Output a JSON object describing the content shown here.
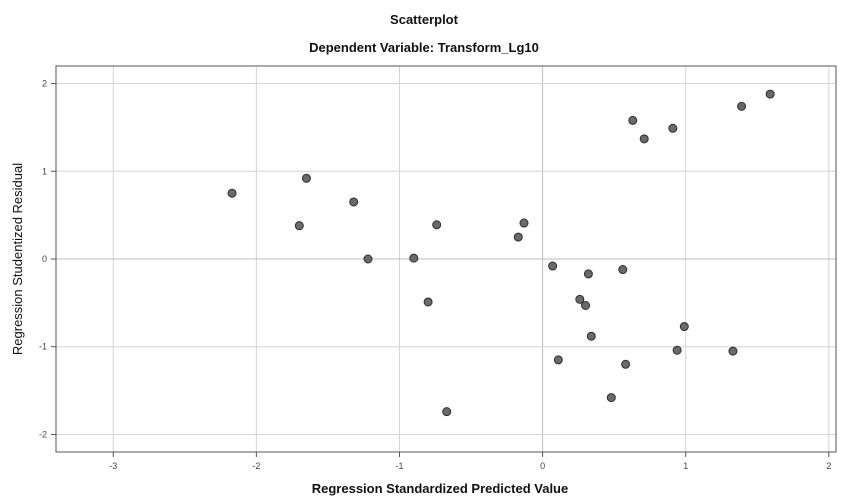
{
  "chart_data": {
    "type": "scatter",
    "title": "Scatterplot",
    "subtitle": "Dependent Variable: Transform_Lg10",
    "xlabel": "Regression Standardized Predicted Value",
    "ylabel": "Regression Studentized Residual",
    "xlim": [
      -3.4,
      2.05
    ],
    "ylim": [
      -2.2,
      2.2
    ],
    "x_ticks": [
      -3,
      -2,
      -1,
      0,
      1,
      2
    ],
    "x_tick_labels": [
      "-3",
      "-2",
      "-1",
      "0",
      "1",
      "2"
    ],
    "y_ticks": [
      -2,
      -1,
      0,
      1,
      2
    ],
    "y_tick_labels": [
      "-2",
      "-1",
      "0",
      "1",
      "2"
    ],
    "grid": true,
    "colors": {
      "point_fill": "#6a6a6a",
      "point_stroke": "#2e2e2e",
      "grid": "#d4d4d4",
      "zero_line": "#bdbdbd",
      "axis": "#555555",
      "text": "#111111"
    },
    "points": [
      {
        "x": -2.17,
        "y": 0.75
      },
      {
        "x": -1.7,
        "y": 0.38
      },
      {
        "x": -1.65,
        "y": 0.92
      },
      {
        "x": -1.32,
        "y": 0.65
      },
      {
        "x": -1.22,
        "y": 0.0
      },
      {
        "x": -0.9,
        "y": 0.01
      },
      {
        "x": -0.8,
        "y": -0.49
      },
      {
        "x": -0.74,
        "y": 0.39
      },
      {
        "x": -0.67,
        "y": -1.74
      },
      {
        "x": -0.17,
        "y": 0.25
      },
      {
        "x": -0.13,
        "y": 0.41
      },
      {
        "x": 0.07,
        "y": -0.08
      },
      {
        "x": 0.11,
        "y": -1.15
      },
      {
        "x": 0.26,
        "y": -0.46
      },
      {
        "x": 0.3,
        "y": -0.53
      },
      {
        "x": 0.32,
        "y": -0.17
      },
      {
        "x": 0.34,
        "y": -0.88
      },
      {
        "x": 0.48,
        "y": -1.58
      },
      {
        "x": 0.56,
        "y": -0.12
      },
      {
        "x": 0.58,
        "y": -1.2
      },
      {
        "x": 0.63,
        "y": 1.58
      },
      {
        "x": 0.71,
        "y": 1.37
      },
      {
        "x": 0.91,
        "y": 1.49
      },
      {
        "x": 0.94,
        "y": -1.04
      },
      {
        "x": 0.99,
        "y": -0.77
      },
      {
        "x": 1.33,
        "y": -1.05
      },
      {
        "x": 1.39,
        "y": 1.74
      },
      {
        "x": 1.59,
        "y": 1.88
      }
    ]
  }
}
